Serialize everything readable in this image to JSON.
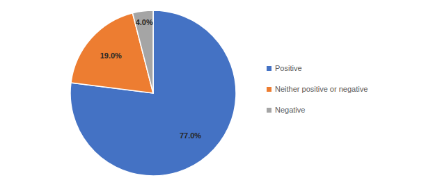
{
  "chart_data": {
    "type": "pie",
    "categories": [
      "Positive",
      "Neither positive or negative",
      "Negative"
    ],
    "values": [
      77,
      19,
      4
    ],
    "value_labels": [
      "77.0%",
      "19.0%",
      "4.0%"
    ],
    "colors": [
      "#4472c4",
      "#ed7d31",
      "#a5a5a5"
    ],
    "data_labels": true,
    "legend": "right"
  }
}
